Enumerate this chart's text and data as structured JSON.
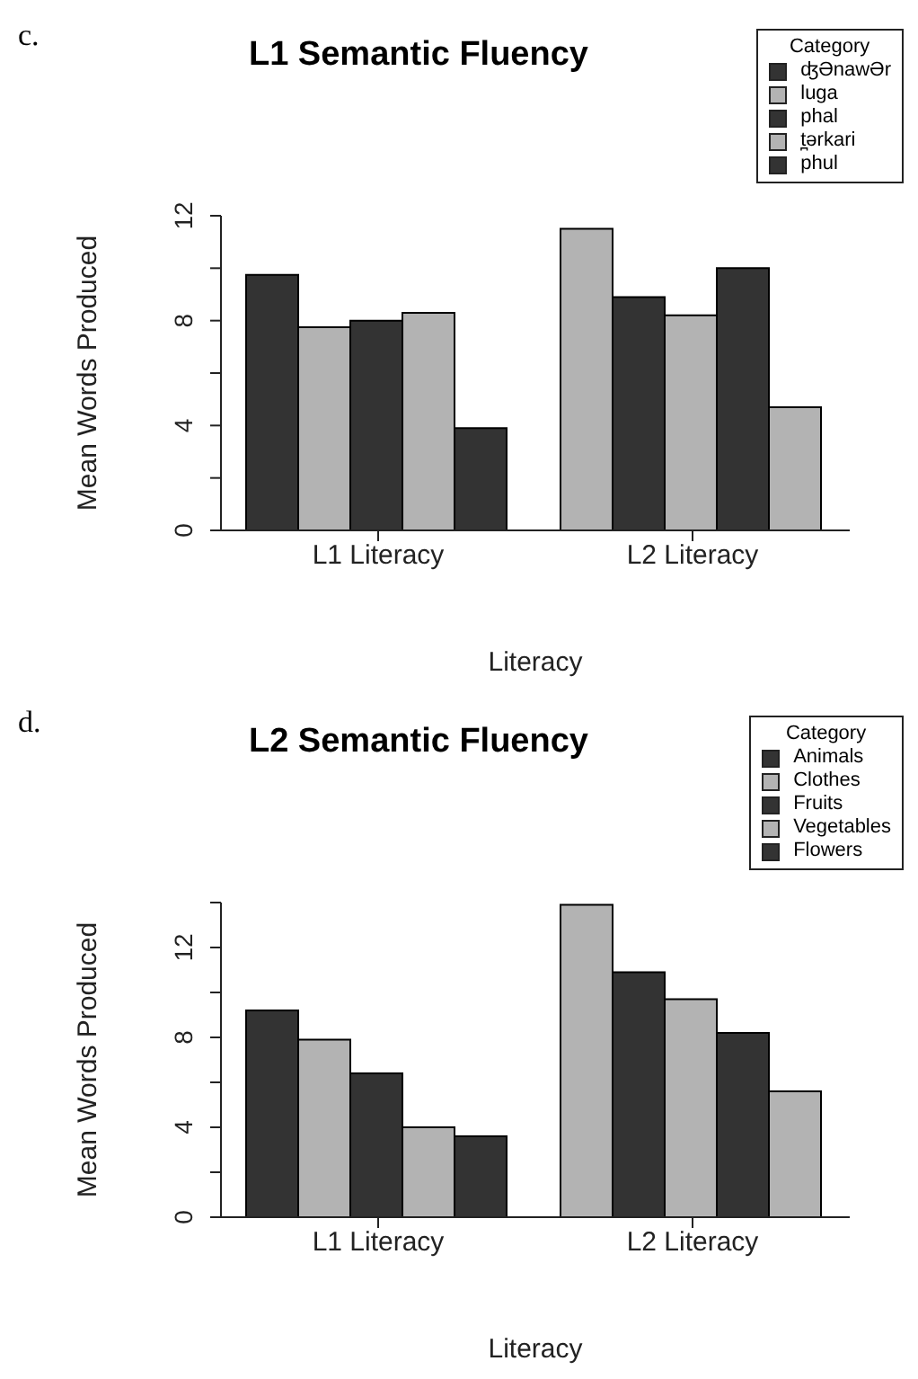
{
  "chart_data": [
    {
      "type": "bar",
      "title": "L1 Semantic Fluency",
      "xlabel": "Literacy",
      "ylabel": "Mean Words Produced",
      "legend_title": "Category",
      "annotations": [
        "c."
      ],
      "categories": [
        "L1 Literacy",
        "L2 Literacy"
      ],
      "series": [
        {
          "name": "ʤƏnawƏr",
          "colors": [
            "#333333",
            "#b3b3b3"
          ],
          "values": [
            9.75,
            11.5
          ]
        },
        {
          "name": "luga",
          "colors": [
            "#b3b3b3",
            "#333333"
          ],
          "values": [
            7.75,
            8.9
          ]
        },
        {
          "name": "phal",
          "colors": [
            "#333333",
            "#b3b3b3"
          ],
          "values": [
            8.0,
            8.2
          ]
        },
        {
          "name": "t̪ərkari",
          "colors": [
            "#b3b3b3",
            "#333333"
          ],
          "values": [
            8.3,
            10.0
          ]
        },
        {
          "name": "phul",
          "colors": [
            "#333333",
            "#b3b3b3"
          ],
          "values": [
            3.9,
            4.7
          ]
        }
      ],
      "ylim": [
        0,
        12
      ],
      "yticks": [
        0,
        {
          "value": 2,
          "label": null
        },
        4,
        {
          "value": 6,
          "label": null
        },
        8,
        {
          "value": 10,
          "label": null
        },
        12
      ],
      "grid": false,
      "legend": "top right"
    },
    {
      "type": "bar",
      "title": "L2 Semantic Fluency",
      "xlabel": "Literacy",
      "ylabel": "Mean Words Produced",
      "legend_title": "Category",
      "annotations": [
        "d."
      ],
      "categories": [
        "L1 Literacy",
        "L2 Literacy"
      ],
      "series": [
        {
          "name": "Animals",
          "colors": [
            "#333333",
            "#b3b3b3"
          ],
          "values": [
            9.2,
            13.9
          ]
        },
        {
          "name": "Clothes",
          "colors": [
            "#b3b3b3",
            "#333333"
          ],
          "values": [
            7.9,
            10.9
          ]
        },
        {
          "name": "Fruits",
          "colors": [
            "#333333",
            "#b3b3b3"
          ],
          "values": [
            6.4,
            9.7
          ]
        },
        {
          "name": "Vegetables",
          "colors": [
            "#b3b3b3",
            "#333333"
          ],
          "values": [
            4.0,
            8.2
          ]
        },
        {
          "name": "Flowers",
          "colors": [
            "#333333",
            "#b3b3b3"
          ],
          "values": [
            3.6,
            5.6
          ]
        }
      ],
      "ylim": [
        0,
        14
      ],
      "yticks": [
        0,
        {
          "value": 2,
          "label": null
        },
        4,
        {
          "value": 6,
          "label": null
        },
        8,
        {
          "value": 10,
          "label": null
        },
        12,
        {
          "value": 14,
          "label": null
        }
      ],
      "grid": false,
      "legend": "top right"
    }
  ]
}
